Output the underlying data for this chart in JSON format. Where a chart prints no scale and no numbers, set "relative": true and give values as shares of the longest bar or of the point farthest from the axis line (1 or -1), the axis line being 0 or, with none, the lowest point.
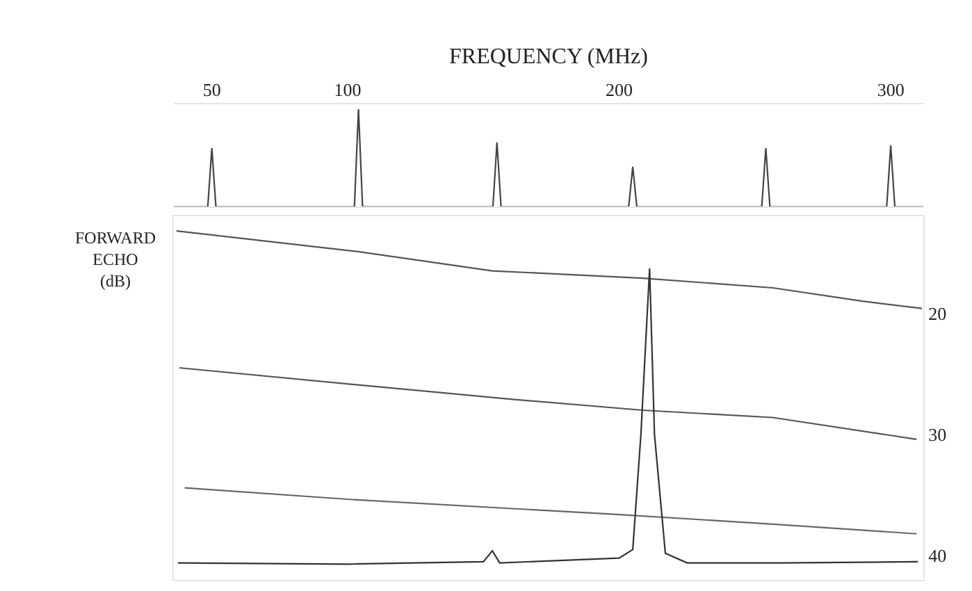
{
  "chart_data": [
    {
      "type": "line",
      "xlabel": "FREQUENCY (MHz)",
      "relative": true,
      "xlim": [
        36,
        312
      ],
      "xticks": [
        50,
        100,
        200,
        300
      ],
      "tick_labels": "x",
      "marker": "none",
      "line_style": "solid",
      "series": [
        {
          "color": "#444444",
          "x": [
            36,
            48.5,
            50,
            51.5,
            102.5,
            104,
            105.5,
            153.5,
            155,
            156.5,
            203.5,
            205,
            206.5,
            252.5,
            254,
            255.5,
            298.5,
            300,
            301.5,
            312
          ],
          "values": [
            0,
            0,
            0.6,
            0,
            0,
            1,
            0,
            0,
            0.66,
            0,
            0,
            0.41,
            0,
            0,
            0.6,
            0,
            0,
            0.63,
            0,
            0
          ]
        }
      ]
    },
    {
      "type": "line",
      "ylabel": "FORWARD ECHO (dB)",
      "xlim": [
        36,
        312
      ],
      "ylim": [
        42,
        12
      ],
      "yticks": [
        20,
        30,
        40
      ],
      "tick_labels": "y",
      "marker": "none",
      "line_style": "solid",
      "series": [
        {
          "color": "#555555",
          "x": [
            37,
            103.4,
            153.3,
            208.7,
            256.6,
            289.5,
            311.5
          ],
          "values": [
            13.2,
            14.9,
            16.5,
            17.1,
            17.9,
            19.0,
            19.6
          ]
        },
        {
          "color": "#555555",
          "x": [
            38,
            103.4,
            160.8,
            208.7,
            256.6,
            309.5
          ],
          "values": [
            24.5,
            25.9,
            27.1,
            28.0,
            28.6,
            30.4
          ]
        },
        {
          "color": "#666666",
          "x": [
            40,
            103.4,
            199.2,
            256.6,
            309.5
          ],
          "values": [
            34.4,
            35.4,
            36.6,
            37.4,
            38.2
          ]
        },
        {
          "color": "#333333",
          "x": [
            37.5,
            100,
            150,
            153.3,
            156,
            200,
            205,
            208,
            211.2,
            213,
            217,
            225,
            260,
            310
          ],
          "values": [
            40.6,
            40.7,
            40.5,
            39.6,
            40.6,
            40.2,
            39.5,
            30,
            16.3,
            30,
            39.8,
            40.6,
            40.6,
            40.5
          ]
        }
      ]
    }
  ]
}
